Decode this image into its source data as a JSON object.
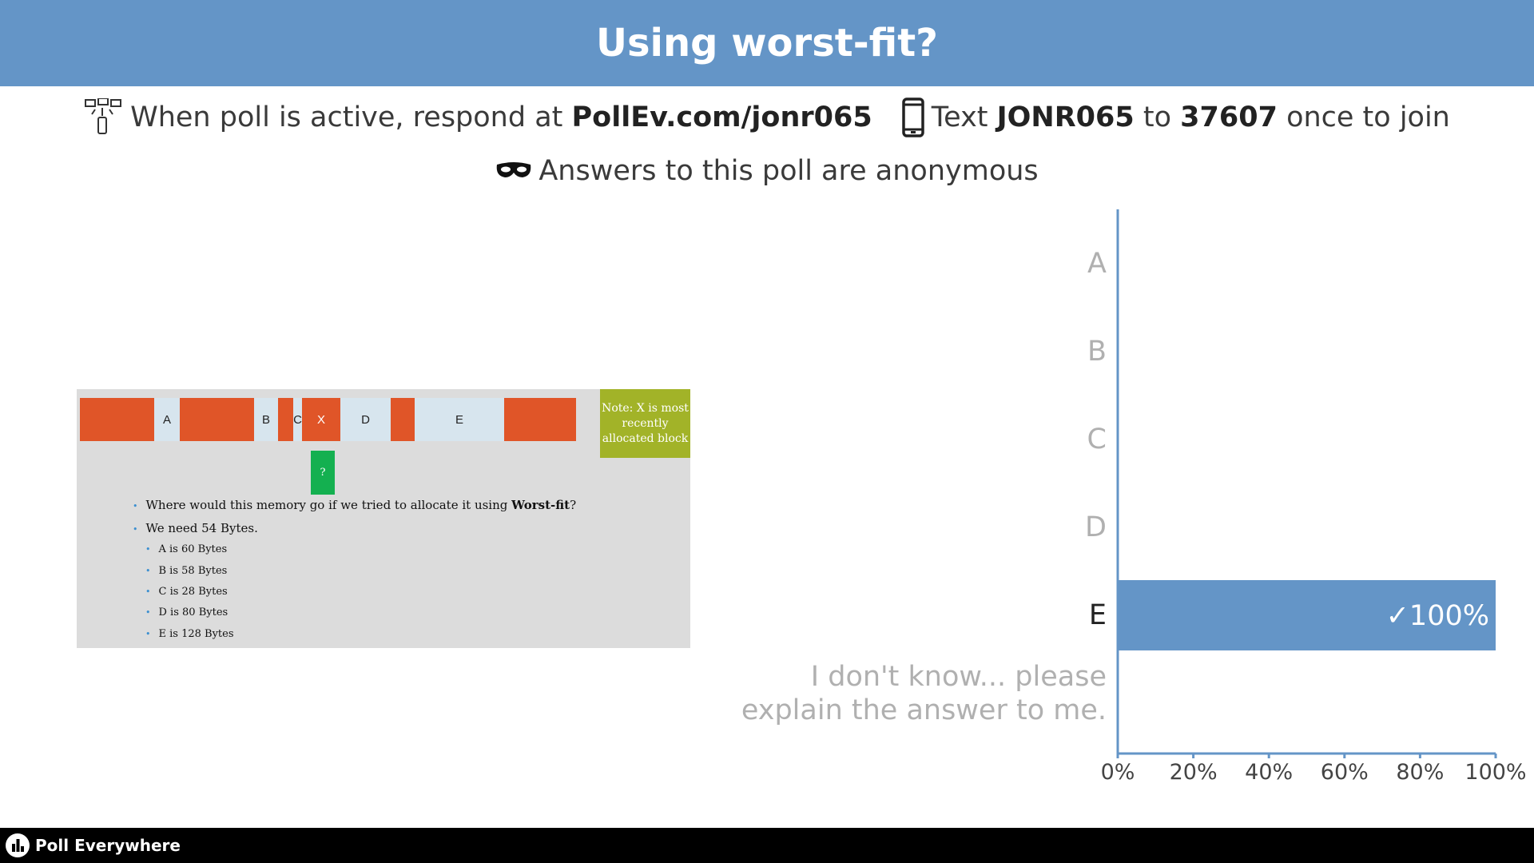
{
  "header": {
    "title": "Using worst-fit?"
  },
  "instructions": {
    "web_prefix": "When poll is active, respond at",
    "web_url": "PollEv.com/jonr065",
    "text_prefix": "Text",
    "text_code": "JONR065",
    "text_to": "to",
    "text_number": "37607",
    "text_suffix": "once to join",
    "anonymous": "Answers to this poll are anonymous",
    "icons": [
      "devices-icon",
      "phone-icon",
      "mask-icon"
    ]
  },
  "slide": {
    "blocks": [
      {
        "label": "",
        "type": "used"
      },
      {
        "label": "A",
        "type": "free"
      },
      {
        "label": "",
        "type": "used"
      },
      {
        "label": "B",
        "type": "free"
      },
      {
        "label": "",
        "type": "used"
      },
      {
        "label": "C",
        "type": "free"
      },
      {
        "label": "X",
        "type": "used"
      },
      {
        "label": "D",
        "type": "free"
      },
      {
        "label": "",
        "type": "used"
      },
      {
        "label": "E",
        "type": "free"
      },
      {
        "label": "",
        "type": "used"
      }
    ],
    "note": "Note: X is most recently allocated block",
    "question_box": "?",
    "bullets": [
      {
        "pre": "Where would this memory go if we tried to allocate it using ",
        "bold": "Worst-fit",
        "post": "?"
      },
      {
        "pre": "We need 54 Bytes.",
        "bold": "",
        "post": ""
      }
    ],
    "sub_bullets": [
      "A is 60 Bytes",
      "B is 58 Bytes",
      "C is 28 Bytes",
      "D is 80 Bytes",
      "E is 128 Bytes"
    ],
    "colors": {
      "used": "#e05528",
      "free": "#d7e5ee",
      "note": "#a2b328",
      "question": "#14b050",
      "background": "#dcdcdc"
    }
  },
  "chart_data": {
    "type": "bar",
    "orientation": "horizontal",
    "categories": [
      "A",
      "B",
      "C",
      "D",
      "E",
      "I don't know... please explain the answer to me."
    ],
    "values": [
      0,
      0,
      0,
      0,
      100,
      0
    ],
    "correct": "E",
    "value_labels": [
      "",
      "",
      "",
      "",
      "✓100%",
      ""
    ],
    "xticks": [
      "0%",
      "20%",
      "40%",
      "60%",
      "80%",
      "100%"
    ],
    "xlim": [
      0,
      100
    ],
    "bar_color": "#6495c7",
    "axis_color": "#6495c7",
    "grid": false
  },
  "footer": {
    "brand": "Poll Everywhere"
  }
}
